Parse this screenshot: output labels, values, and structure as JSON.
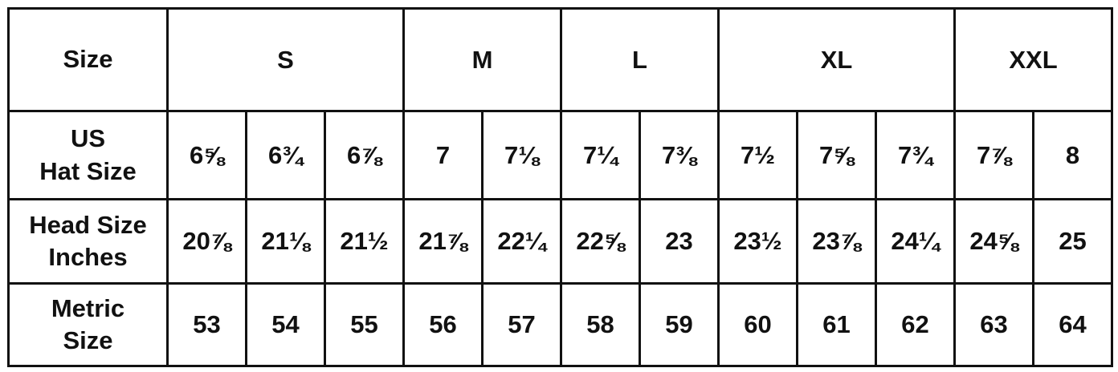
{
  "table": {
    "header_label": "Size",
    "sizes": [
      "S",
      "M",
      "L",
      "XL",
      "XXL"
    ],
    "rows": [
      {
        "label": "US\nHat Size",
        "values": [
          "6⅝",
          "6¾",
          "6⅞",
          "7",
          "7⅛",
          "7¼",
          "7⅜",
          "7½",
          "7⅝",
          "7¾",
          "7⅞",
          "8"
        ]
      },
      {
        "label": "Head Size\nInches",
        "values": [
          "20⅞",
          "21⅛",
          "21½",
          "21⅞",
          "22¼",
          "22⅝",
          "23",
          "23½",
          "23⅞",
          "24¼",
          "24⅝",
          "25"
        ]
      },
      {
        "label": "Metric\nSize",
        "values": [
          "53",
          "54",
          "55",
          "56",
          "57",
          "58",
          "59",
          "60",
          "61",
          "62",
          "63",
          "64"
        ]
      }
    ]
  }
}
